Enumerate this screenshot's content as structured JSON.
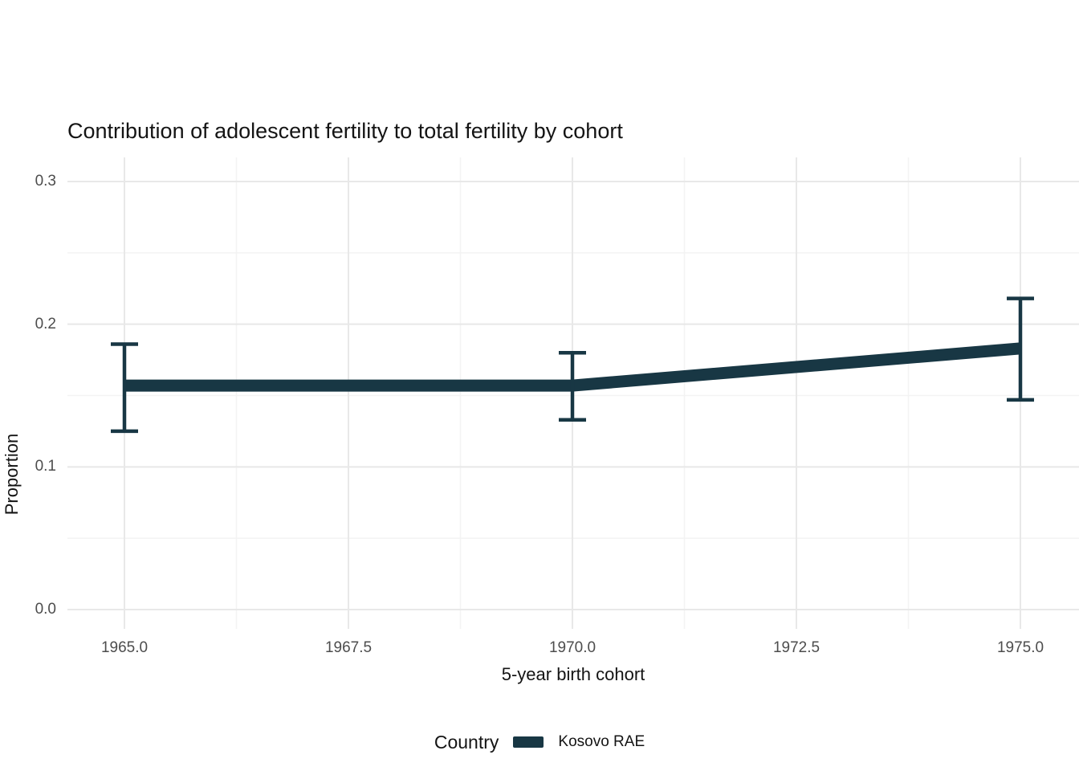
{
  "chart_data": {
    "type": "line",
    "title": "Contribution of adolescent fertility to total fertility by cohort",
    "xlabel": "5-year birth cohort",
    "ylabel": "Proportion",
    "xlim": [
      1965,
      1975
    ],
    "ylim": [
      0.0,
      0.3
    ],
    "grid": {
      "on": true,
      "major_color": "#e8e8e8",
      "minor_color": "#f3f3f3"
    },
    "x_ticks": [
      1965.0,
      1967.5,
      1970.0,
      1972.5,
      1975.0
    ],
    "x_tick_labels": [
      "1965.0",
      "1967.5",
      "1970.0",
      "1972.5",
      "1975.0"
    ],
    "x_minor_ticks": [
      1966.25,
      1968.75,
      1971.25,
      1973.75
    ],
    "y_ticks": [
      0.0,
      0.1,
      0.2,
      0.3
    ],
    "y_tick_labels": [
      "0.0",
      "0.1",
      "0.2",
      "0.3"
    ],
    "y_minor_ticks": [
      0.05,
      0.15,
      0.25
    ],
    "series": [
      {
        "name": "Kosovo RAE",
        "color": "#183744",
        "x": [
          1965,
          1970,
          1975
        ],
        "y": [
          0.157,
          0.157,
          0.183
        ],
        "y_lower": [
          0.125,
          0.133,
          0.147
        ],
        "y_upper": [
          0.186,
          0.18,
          0.218
        ]
      }
    ],
    "legend": {
      "position": "bottom",
      "title": "Country",
      "entries": [
        {
          "label": "Kosovo RAE",
          "color": "#183744"
        }
      ]
    }
  }
}
